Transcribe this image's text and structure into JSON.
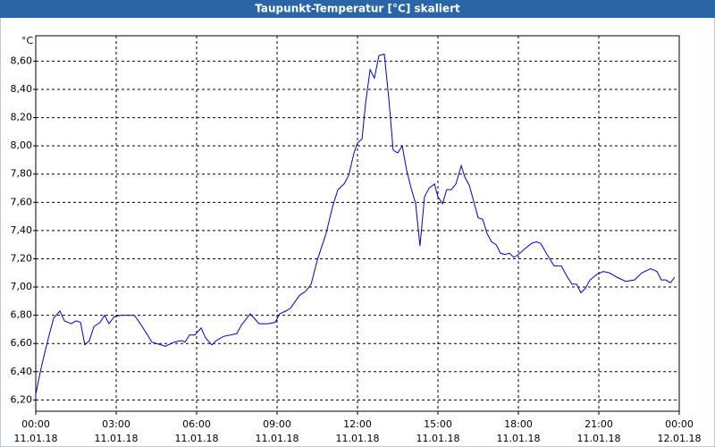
{
  "chart_data": {
    "type": "line",
    "title": "Taupunkt-Temperatur [°C] skaliert",
    "y_label": "°C",
    "color": "#0000c8",
    "grid": true,
    "xlim": [
      0,
      24
    ],
    "ylim": [
      6.12,
      8.78
    ],
    "xticks": [
      {
        "value": 0,
        "label": "00:00",
        "date": "11.01.18"
      },
      {
        "value": 3,
        "label": "03:00",
        "date": "11.01.18"
      },
      {
        "value": 6,
        "label": "06:00",
        "date": "11.01.18"
      },
      {
        "value": 9,
        "label": "09:00",
        "date": "11.01.18"
      },
      {
        "value": 12,
        "label": "12:00",
        "date": "11.01.18"
      },
      {
        "value": 15,
        "label": "15:00",
        "date": "11.01.18"
      },
      {
        "value": 18,
        "label": "18:00",
        "date": "11.01.18"
      },
      {
        "value": 21,
        "label": "21:00",
        "date": "11.01.18"
      },
      {
        "value": 24,
        "label": "00:00",
        "date": "12.01.18"
      }
    ],
    "yticks": [
      {
        "value": 6.2,
        "label": "6,20"
      },
      {
        "value": 6.4,
        "label": "6,40"
      },
      {
        "value": 6.6,
        "label": "6,60"
      },
      {
        "value": 6.8,
        "label": "6,80"
      },
      {
        "value": 7.0,
        "label": "7,00"
      },
      {
        "value": 7.2,
        "label": "7,20"
      },
      {
        "value": 7.4,
        "label": "7,40"
      },
      {
        "value": 7.6,
        "label": "7,60"
      },
      {
        "value": 7.8,
        "label": "7,80"
      },
      {
        "value": 8.0,
        "label": "8,00"
      },
      {
        "value": 8.2,
        "label": "8,20"
      },
      {
        "value": 8.4,
        "label": "8,40"
      },
      {
        "value": 8.6,
        "label": "8,60"
      }
    ],
    "x": [
      0,
      0.17,
      0.33,
      0.5,
      0.67,
      0.9,
      1.07,
      1.33,
      1.5,
      1.67,
      1.83,
      2,
      2.17,
      2.4,
      2.57,
      2.73,
      2.93,
      3.17,
      3.67,
      3.83,
      4.07,
      4.33,
      4.67,
      4.83,
      5.17,
      5.43,
      5.57,
      5.73,
      5.93,
      6.17,
      6.33,
      6.57,
      6.73,
      7,
      7.5,
      7.67,
      8,
      8.33,
      8.67,
      8.93,
      9.1,
      9.33,
      9.5,
      9.83,
      10.07,
      10.27,
      10.5,
      10.83,
      11.07,
      11.27,
      11.5,
      11.67,
      11.87,
      12,
      12.17,
      12.3,
      12.47,
      12.63,
      12.8,
      13,
      13.17,
      13.33,
      13.5,
      13.67,
      13.83,
      14,
      14.17,
      14.33,
      14.5,
      14.67,
      14.87,
      15,
      15.17,
      15.33,
      15.5,
      15.67,
      15.87,
      16,
      16.17,
      16.33,
      16.5,
      16.67,
      16.83,
      17,
      17.17,
      17.33,
      17.5,
      17.67,
      17.83,
      18,
      18.17,
      18.5,
      18.67,
      18.83,
      19.07,
      19.33,
      19.6,
      19.83,
      20,
      20.17,
      20.33,
      20.5,
      20.67,
      20.93,
      21.17,
      21.4,
      21.67,
      22,
      22.33,
      22.6,
      22.93,
      23.17,
      23.33,
      23.5,
      23.67,
      23.83
    ],
    "values": [
      6.24,
      6.4,
      6.53,
      6.66,
      6.78,
      6.83,
      6.76,
      6.74,
      6.76,
      6.75,
      6.59,
      6.62,
      6.72,
      6.75,
      6.8,
      6.74,
      6.79,
      6.8,
      6.8,
      6.76,
      6.69,
      6.61,
      6.59,
      6.58,
      6.61,
      6.62,
      6.61,
      6.66,
      6.66,
      6.71,
      6.64,
      6.59,
      6.62,
      6.65,
      6.67,
      6.73,
      6.81,
      6.74,
      6.74,
      6.75,
      6.81,
      6.83,
      6.85,
      6.94,
      6.97,
      7.02,
      7.19,
      7.38,
      7.57,
      7.69,
      7.73,
      7.79,
      7.95,
      8.02,
      8.05,
      8.3,
      8.54,
      8.48,
      8.64,
      8.65,
      8.33,
      7.97,
      7.95,
      8.0,
      7.83,
      7.7,
      7.59,
      7.29,
      7.64,
      7.7,
      7.73,
      7.64,
      7.59,
      7.69,
      7.69,
      7.73,
      7.86,
      7.78,
      7.72,
      7.61,
      7.49,
      7.48,
      7.38,
      7.32,
      7.3,
      7.24,
      7.23,
      7.24,
      7.21,
      7.23,
      7.26,
      7.31,
      7.32,
      7.31,
      7.23,
      7.15,
      7.15,
      7.07,
      7.02,
      7.02,
      6.96,
      6.99,
      7.05,
      7.09,
      7.11,
      7.1,
      7.07,
      7.04,
      7.05,
      7.1,
      7.13,
      7.11,
      7.05,
      7.05,
      7.03,
      7.07
    ]
  }
}
